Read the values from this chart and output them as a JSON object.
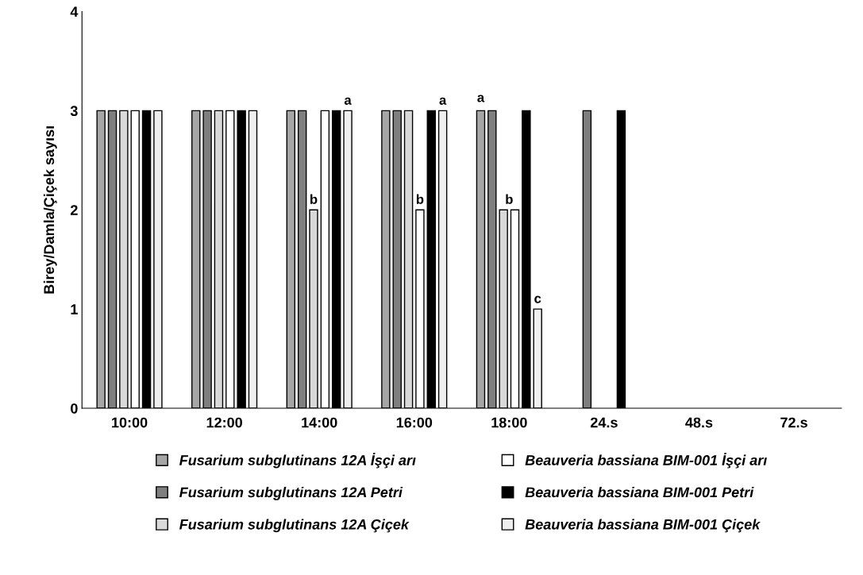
{
  "chart_data": {
    "type": "bar",
    "ylabel": "Birey/Damla/Çiçek sayısı",
    "categories": [
      "10:00",
      "12:00",
      "14:00",
      "16:00",
      "18:00",
      "24.s",
      "48.s",
      "72.s"
    ],
    "series": [
      {
        "name": "Fusarium subglutinans 12A İşçi arı",
        "color": "#a6a6a6",
        "values": [
          3,
          3,
          3,
          3,
          3,
          0,
          0,
          0
        ]
      },
      {
        "name": "Fusarium subglutinans 12A Petri",
        "color": "#7f7f7f",
        "values": [
          3,
          3,
          3,
          3,
          3,
          3,
          0,
          0
        ]
      },
      {
        "name": "Fusarium subglutinans 12A Çiçek",
        "color": "#d9d9d9",
        "values": [
          3,
          3,
          2,
          3,
          2,
          0,
          0,
          0
        ]
      },
      {
        "name": "Beauveria bassiana BIM-001 İşçi arı",
        "color": "#ffffff",
        "values": [
          3,
          3,
          3,
          2,
          2,
          0,
          0,
          0
        ]
      },
      {
        "name": "Beauveria bassiana BIM-001 Petri",
        "color": "#000000",
        "values": [
          3,
          3,
          3,
          3,
          3,
          3,
          0,
          0
        ]
      },
      {
        "name": "Beauveria bassiana BIM-001 Çiçek",
        "color": "#efefef",
        "values": [
          3,
          3,
          3,
          3,
          1,
          0,
          0,
          0
        ]
      }
    ],
    "ylim": [
      0,
      4
    ],
    "yticks": [
      0,
      1,
      2,
      3,
      4
    ],
    "grid": false,
    "legend": "bottom",
    "annotations": [
      {
        "text": "b",
        "x": "14:00",
        "y": 2
      },
      {
        "text": "a",
        "x": "14:00",
        "y": 3
      },
      {
        "text": "b",
        "x": "16:00",
        "y": 2
      },
      {
        "text": "a",
        "x": "16:00",
        "y": 3
      },
      "a",
      {
        "text": "b",
        "x": "18:00",
        "y": 2
      },
      {
        "text": "c",
        "x": "18:00",
        "y": 1
      }
    ]
  }
}
